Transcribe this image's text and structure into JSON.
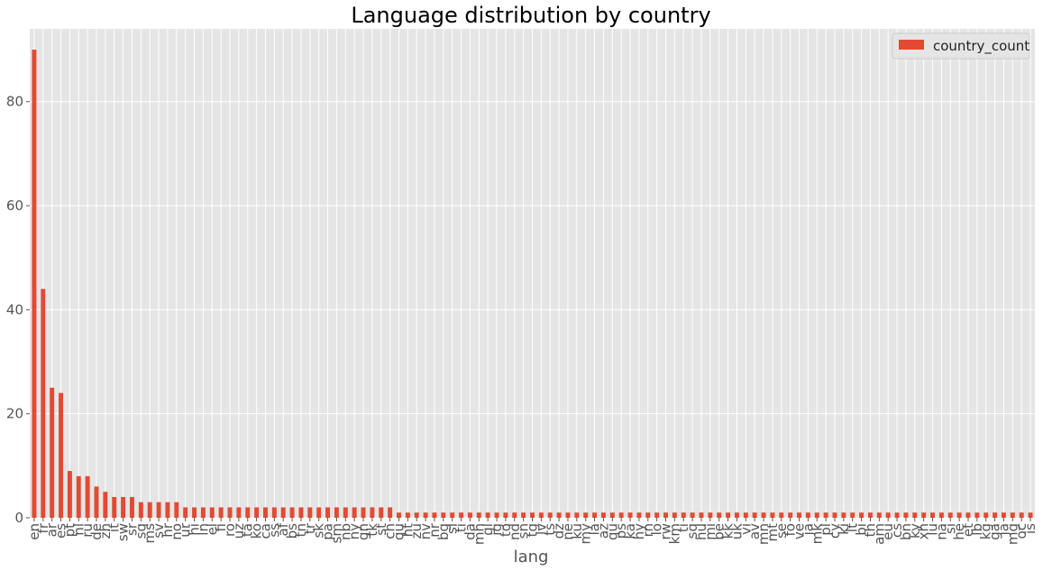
{
  "chart_data": {
    "type": "bar",
    "title": "Language distribution by country",
    "xlabel": "lang",
    "ylabel": "",
    "ylim": [
      0,
      94
    ],
    "yticks": [
      0,
      20,
      40,
      60,
      80
    ],
    "grid": true,
    "legend_position": "top-right",
    "categories": [
      "en",
      "fr",
      "ar",
      "es",
      "pt",
      "nl",
      "ru",
      "de",
      "zh",
      "it",
      "sw",
      "sr",
      "sq",
      "ms",
      "sv",
      "hr",
      "no",
      "ur",
      "hi",
      "ln",
      "el",
      "fi",
      "ro",
      "uz",
      "ta",
      "ko",
      "ca",
      "ss",
      "af",
      "bs",
      "tn",
      "tr",
      "sk",
      "pa",
      "sm",
      "nb",
      "ny",
      "gn",
      "tk",
      "st",
      "ch",
      "qu",
      "ht",
      "zu",
      "nv",
      "nr",
      "bg",
      "sl",
      "ti",
      "da",
      "mh",
      "gl",
      "ig",
      "to",
      "nd",
      "sn",
      "tg",
      "lv",
      "ts",
      "dz",
      "ne",
      "ku",
      "my",
      "la",
      "az",
      "qu",
      "ps",
      "ka",
      "hy",
      "rn",
      "lo",
      "rw",
      "km",
      "ti",
      "sq",
      "hu",
      "mi",
      "be",
      "kk",
      "uk",
      "vi",
      "av",
      "mn",
      "mt",
      "se",
      "fo",
      "ve",
      "ja",
      "mk",
      "pl",
      "cy",
      "ki",
      "lt",
      "bi",
      "th",
      "am",
      "eu",
      "cs",
      "bn",
      "ky",
      "xh",
      "lu",
      "na",
      "si",
      "he",
      "et",
      "lb",
      "kg",
      "ga",
      "ja",
      "mg",
      "oc",
      "is"
    ],
    "series": [
      {
        "name": "country_count",
        "color": "#E24A33",
        "values": [
          90,
          44,
          25,
          24,
          9,
          8,
          8,
          6,
          5,
          4,
          4,
          4,
          3,
          3,
          3,
          3,
          3,
          2,
          2,
          2,
          2,
          2,
          2,
          2,
          2,
          2,
          2,
          2,
          2,
          2,
          2,
          2,
          2,
          2,
          2,
          2,
          2,
          2,
          2,
          2,
          2,
          1,
          1,
          1,
          1,
          1,
          1,
          1,
          1,
          1,
          1,
          1,
          1,
          1,
          1,
          1,
          1,
          1,
          1,
          1,
          1,
          1,
          1,
          1,
          1,
          1,
          1,
          1,
          1,
          1,
          1,
          1,
          1,
          1,
          1,
          1,
          1,
          1,
          1,
          1,
          1,
          1,
          1,
          1,
          1,
          1,
          1,
          1,
          1,
          1,
          1,
          1,
          1,
          1,
          1,
          1,
          1,
          1,
          1,
          1,
          1,
          1,
          1,
          1,
          1,
          1,
          1,
          1,
          1,
          1,
          1,
          1,
          1
        ]
      }
    ]
  },
  "colors": {
    "plot_background": "#E5E5E5",
    "grid": "#FFFFFF",
    "bar": "#E24A33"
  }
}
